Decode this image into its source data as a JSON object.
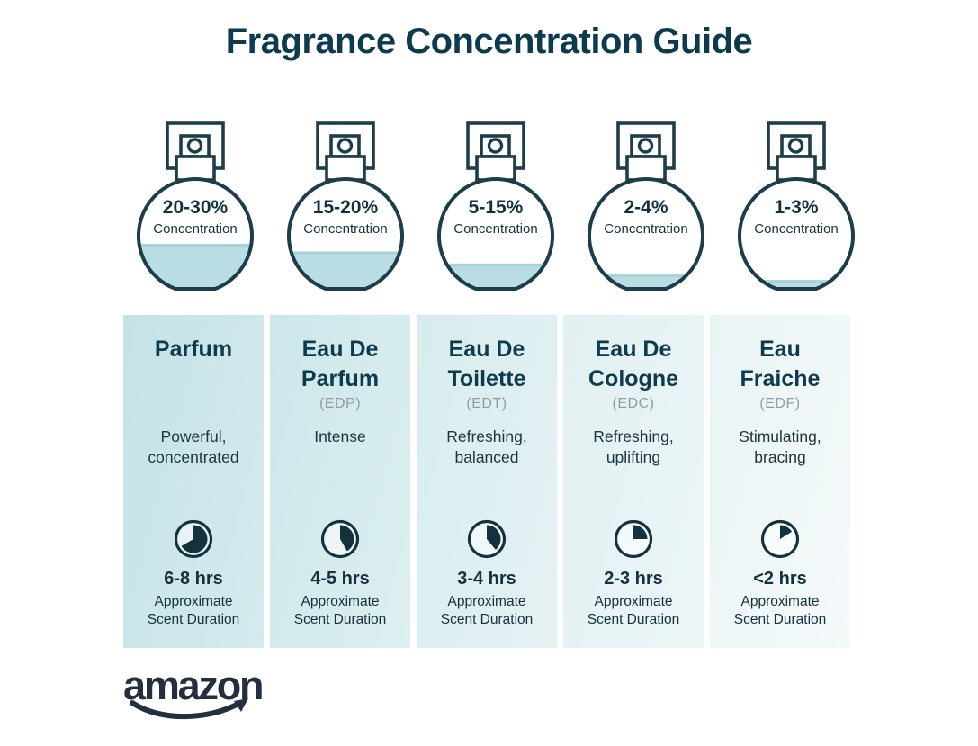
{
  "title": "Fragrance Concentration Guide",
  "brand": {
    "logo_text": "amazon"
  },
  "colors": {
    "ink": "#0d3a4e",
    "outline": "#1d3d4a",
    "body_text": "#1c3540",
    "liquid": "#b9dde3",
    "liquid_edge": "#a6d2d9",
    "abbrev_gray": "#8e9da3",
    "logo": "#232f3e"
  },
  "columns": [
    {
      "name_lines": [
        "Parfum"
      ],
      "abbrev": "",
      "concentration": "20-30%",
      "concentration_label": "Concentration",
      "fill_percent": 41,
      "description_lines": [
        "Powerful,",
        "concentrated"
      ],
      "clock_sweep_deg": 240,
      "duration": "6-8 hrs",
      "caption_lines": [
        "Approximate",
        "Scent Duration"
      ],
      "bg": "#c4e2e7",
      "bg_light": "#d5ebee"
    },
    {
      "name_lines": [
        "Eau De",
        "Parfum"
      ],
      "abbrev": "(EDP)",
      "concentration": "15-20%",
      "concentration_label": "Concentration",
      "fill_percent": 34,
      "description_lines": [
        "Intense"
      ],
      "clock_sweep_deg": 150,
      "duration": "4-5 hrs",
      "caption_lines": [
        "Approximate",
        "Scent Duration"
      ],
      "bg": "#cde7ea",
      "bg_light": "#ddeff1"
    },
    {
      "name_lines": [
        "Eau De",
        "Toilette"
      ],
      "abbrev": "(EDT)",
      "concentration": "5-15%",
      "concentration_label": "Concentration",
      "fill_percent": 23,
      "description_lines": [
        "Refreshing,",
        "balanced"
      ],
      "clock_sweep_deg": 140,
      "duration": "3-4 hrs",
      "caption_lines": [
        "Approximate",
        "Scent Duration"
      ],
      "bg": "#d7ecee",
      "bg_light": "#e5f2f4"
    },
    {
      "name_lines": [
        "Eau De",
        "Cologne"
      ],
      "abbrev": "(EDC)",
      "concentration": "2-4%",
      "concentration_label": "Concentration",
      "fill_percent": 13,
      "description_lines": [
        "Refreshing,",
        "uplifting"
      ],
      "clock_sweep_deg": 90,
      "duration": "2-3 hrs",
      "caption_lines": [
        "Approximate",
        "Scent Duration"
      ],
      "bg": "#e1f0f2",
      "bg_light": "#edf6f7"
    },
    {
      "name_lines": [
        "Eau",
        "Fraiche"
      ],
      "abbrev": "(EDF)",
      "concentration": "1-3%",
      "concentration_label": "Concentration",
      "fill_percent": 8,
      "description_lines": [
        "Stimulating,",
        "bracing"
      ],
      "clock_sweep_deg": 58,
      "duration": "<2 hrs",
      "caption_lines": [
        "Approximate",
        "Scent Duration"
      ],
      "bg": "#eaf4f5",
      "bg_light": "#f4f9fa"
    }
  ]
}
